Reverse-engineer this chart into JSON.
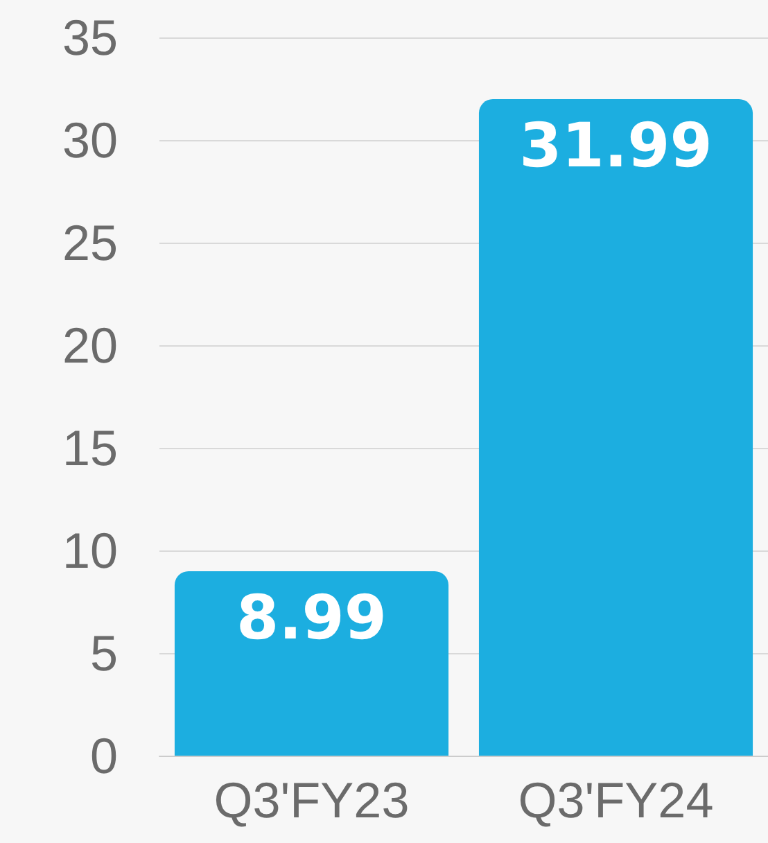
{
  "chart_data": {
    "type": "bar",
    "categories": [
      "Q3'FY23",
      "Q3'FY24"
    ],
    "values": [
      8.99,
      31.99
    ],
    "color": "#1caee0",
    "ylim": [
      0,
      35
    ],
    "yticks": [
      0,
      5,
      10,
      15,
      20,
      25,
      30,
      35
    ],
    "grid": "y",
    "data_labels": true
  }
}
